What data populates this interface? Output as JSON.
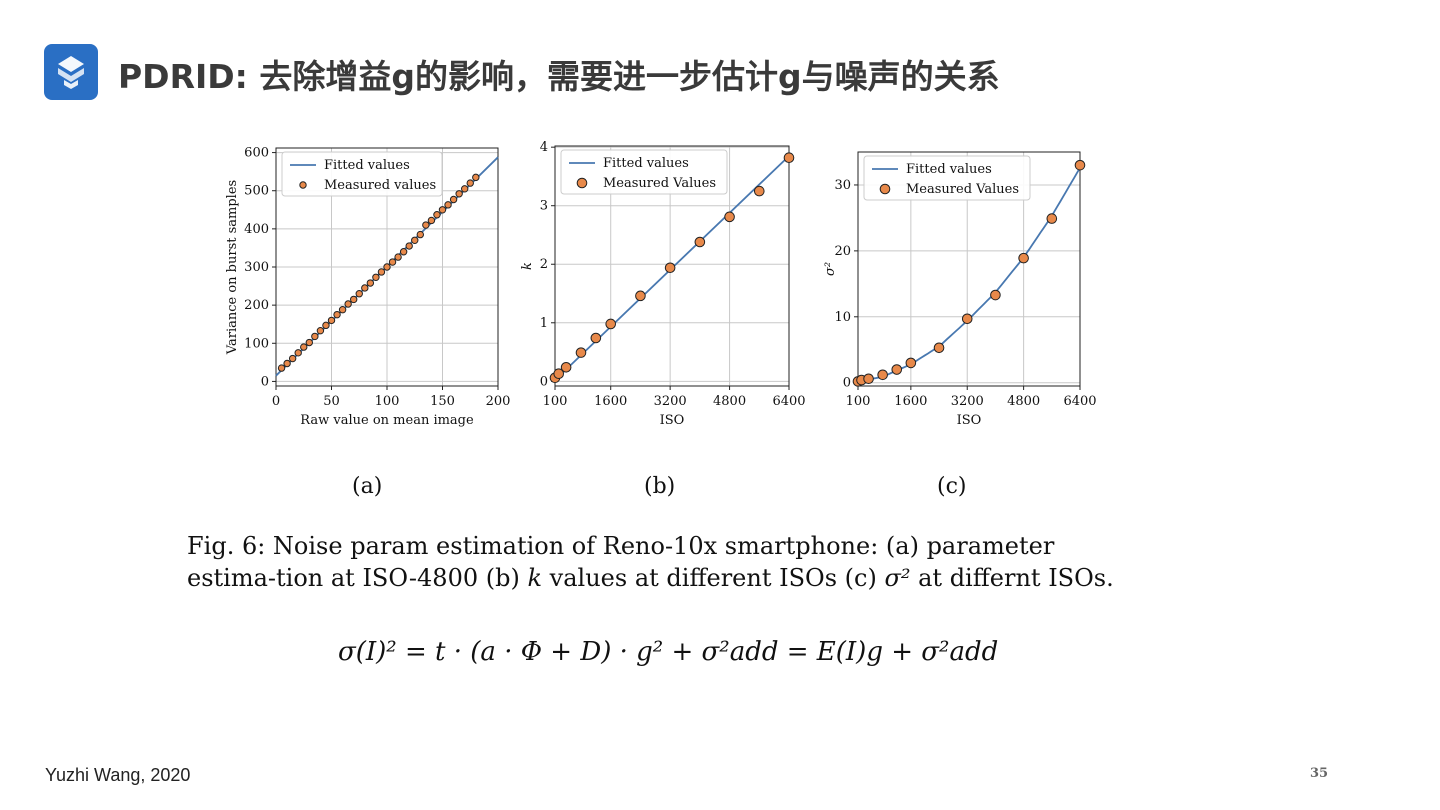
{
  "slide": {
    "title": "PDRID: 去除增益g的影响，需要进一步估计g与噪声的关系",
    "caption_prefix": "Fig. 6: Noise param estimation of Reno-10x smartphone: (a) parameter estima-tion at ISO-4800 (b)",
    "caption_k": "k",
    "caption_mid": "values at different ISOs (c)",
    "caption_sigma": "σ²",
    "caption_suffix": "at differnt ISOs.",
    "formula": "σ(I)² = t · (a · Φ + D) · g² + σ²add = E(I)g + σ²add",
    "footer": "Yuzhi Wang, 2020",
    "page_number": "35",
    "logo_color": "#2a6fc4"
  },
  "chart_data": [
    {
      "type": "scatter",
      "sublabel": "(a)",
      "xlabel": "Raw value on mean image",
      "ylabel": "Variance on burst samples",
      "xlim": [
        0,
        200
      ],
      "ylim": [
        -12,
        612
      ],
      "xticks": [
        0,
        50,
        100,
        150,
        200
      ],
      "yticks": [
        0,
        100,
        200,
        300,
        400,
        500,
        600
      ],
      "grid": true,
      "legend": {
        "position": "top-left",
        "entries": [
          "Fitted values",
          "Measured values"
        ]
      },
      "fit_line": {
        "x": [
          0,
          200
        ],
        "y": [
          15,
          588
        ]
      },
      "series": [
        {
          "name": "Measured values",
          "x": [
            5,
            10,
            15,
            20,
            25,
            30,
            35,
            40,
            45,
            50,
            55,
            60,
            65,
            70,
            75,
            80,
            85,
            90,
            95,
            100,
            105,
            110,
            115,
            120,
            125,
            130,
            135,
            140,
            145,
            150,
            155,
            160,
            165,
            170,
            175,
            180
          ],
          "y": [
            35,
            47,
            60,
            75,
            90,
            102,
            118,
            133,
            147,
            160,
            175,
            188,
            203,
            215,
            230,
            245,
            258,
            273,
            287,
            300,
            313,
            326,
            340,
            355,
            370,
            385,
            410,
            422,
            437,
            450,
            463,
            477,
            492,
            505,
            520,
            535
          ]
        }
      ],
      "colors": {
        "line": "#4878b0",
        "marker": "#e8894a"
      }
    },
    {
      "type": "scatter",
      "sublabel": "(b)",
      "xlabel": "ISO",
      "ylabel": "k",
      "xlim": [
        100,
        6400
      ],
      "ylim": [
        -0.08,
        4.02
      ],
      "xticks": [
        100,
        1600,
        3200,
        4800,
        6400
      ],
      "yticks": [
        0,
        1,
        2,
        3,
        4
      ],
      "grid": true,
      "legend": {
        "position": "top-left",
        "entries": [
          "Fitted values",
          "Measured Values"
        ]
      },
      "fit_line": {
        "x": [
          100,
          6400
        ],
        "y": [
          0.02,
          3.85
        ]
      },
      "series": [
        {
          "name": "Measured Values",
          "x": [
            100,
            200,
            400,
            800,
            1200,
            1600,
            2400,
            3200,
            4000,
            4800,
            5600,
            6400
          ],
          "y": [
            0.06,
            0.13,
            0.24,
            0.49,
            0.74,
            0.98,
            1.46,
            1.94,
            2.38,
            2.81,
            3.25,
            3.82
          ]
        }
      ],
      "colors": {
        "line": "#4878b0",
        "marker": "#e8894a"
      }
    },
    {
      "type": "scatter",
      "sublabel": "(c)",
      "xlabel": "ISO",
      "ylabel": "σ²",
      "xlim": [
        100,
        6400
      ],
      "ylim": [
        -0.5,
        35
      ],
      "xticks": [
        100,
        1600,
        3200,
        4800,
        6400
      ],
      "yticks": [
        0,
        10,
        20,
        30
      ],
      "grid": true,
      "legend": {
        "position": "top-left",
        "entries": [
          "Fitted values",
          "Measured Values"
        ]
      },
      "fit_curve": {
        "x": [
          100,
          800,
          1600,
          2400,
          3200,
          4000,
          4800,
          5600,
          6400
        ],
        "y": [
          0.2,
          0.9,
          2.8,
          5.5,
          9.4,
          13.7,
          19.0,
          25.3,
          32.6
        ]
      },
      "series": [
        {
          "name": "Measured Values",
          "x": [
            100,
            200,
            400,
            800,
            1200,
            1600,
            2400,
            3200,
            4000,
            4800,
            5600,
            6400
          ],
          "y": [
            0.2,
            0.4,
            0.6,
            1.2,
            2.0,
            3.0,
            5.3,
            9.7,
            13.3,
            18.9,
            24.9,
            33.0
          ]
        }
      ],
      "colors": {
        "line": "#4878b0",
        "marker": "#e8894a"
      }
    }
  ]
}
